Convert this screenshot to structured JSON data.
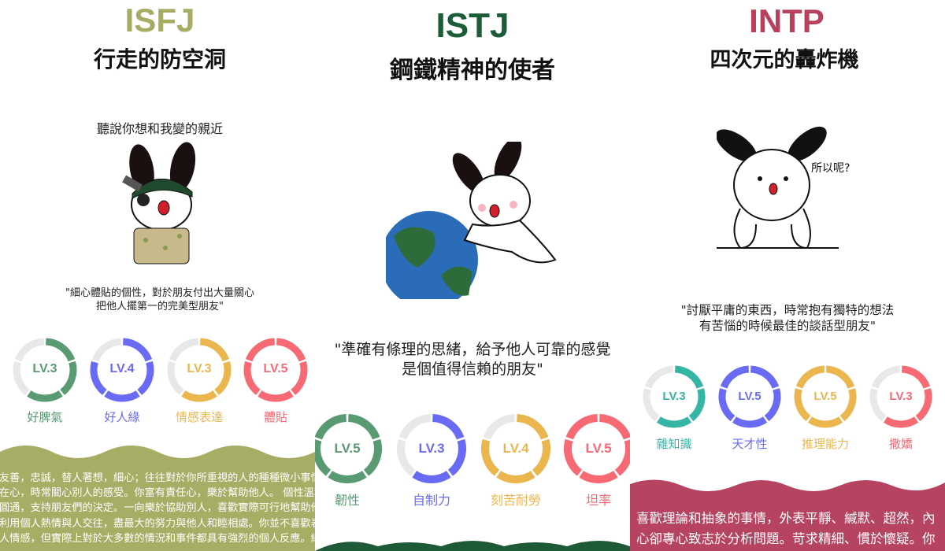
{
  "panels": [
    {
      "type": "ISFJ",
      "nickname": "行走的防空洞",
      "caption": "聽說你想和我變的親近",
      "quote": [
        "\"細心體貼的個性，對於朋友付出大量關心",
        "把他人擺第一的完美型朋友\""
      ],
      "accent": "#a6ad62",
      "band_color": "#a7ad65",
      "traits": [
        {
          "label": "好脾氣",
          "level_text": "LV.3",
          "level": 3,
          "color": "#5a9a72"
        },
        {
          "label": "好人緣",
          "level_text": "LV.4",
          "level": 4,
          "color": "#6a6bf5"
        },
        {
          "label": "情感表達",
          "level_text": "LV.3",
          "level": 3,
          "color": "#ecb64f"
        },
        {
          "label": "體貼",
          "level_text": "LV.5",
          "level": 5,
          "color": "#f76a73"
        }
      ],
      "description": [
        "友善，忠誠，替人著想，細心；往往對於你所重視的人的種種微小事情牢記",
        "在心，時常關心別人的感受。你富有責任心，樂於幫助他人。 個性溫和、",
        "圓通，支持朋友們的決定。一向樂於協助別人，喜歡實際可行地幫助他人。",
        "利用個人熱情與人交往，盡最大的努力與他人和睦相處。你並不喜歡表達個",
        "人情感，但實際上對於大多數的情況和事件都具有強烈的個人反應。總結來"
      ]
    },
    {
      "type": "ISTJ",
      "nickname": "鋼鐵精神的使者",
      "quote": [
        "\"準確有條理的思緒，給予他人可靠的感覺",
        "是個值得信賴的朋友\""
      ],
      "accent": "#1d5c38",
      "band_color": "#1e5a36",
      "traits": [
        {
          "label": "韌性",
          "level_text": "LV.5",
          "level": 5,
          "color": "#5a9a72"
        },
        {
          "label": "自制力",
          "level_text": "LV.3",
          "level": 3,
          "color": "#6a6bf5"
        },
        {
          "label": "刻苦耐勞",
          "level_text": "LV.4",
          "level": 4,
          "color": "#ecb64f"
        },
        {
          "label": "坦率",
          "level_text": "LV.5",
          "level": 5,
          "color": "#f76a73"
        }
      ]
    },
    {
      "type": "INTP",
      "nickname": "四次元的轟炸機",
      "speech": "所以呢?",
      "quote": [
        "\"討厭平庸的東西，時常抱有獨特的想法",
        "有苦惱的時候最佳的談話型朋友\""
      ],
      "accent": "#b8405c",
      "band_color": "#b6435f",
      "traits": [
        {
          "label": "雜知識",
          "level_text": "LV.3",
          "level": 3,
          "color": "#35b5a4"
        },
        {
          "label": "天才性",
          "level_text": "LV.5",
          "level": 5,
          "color": "#6a6bf5"
        },
        {
          "label": "推理能力",
          "level_text": "LV.5",
          "level": 5,
          "color": "#ecb64f"
        },
        {
          "label": "撒嬌",
          "level_text": "LV.3",
          "level": 3,
          "color": "#f76a73"
        }
      ],
      "description": [
        "喜歡理論和抽象的事情，外表平靜、緘默、超然，內",
        "心卻專心致志於分析問題。苛求精細、慣於懷疑。你"
      ]
    }
  ]
}
